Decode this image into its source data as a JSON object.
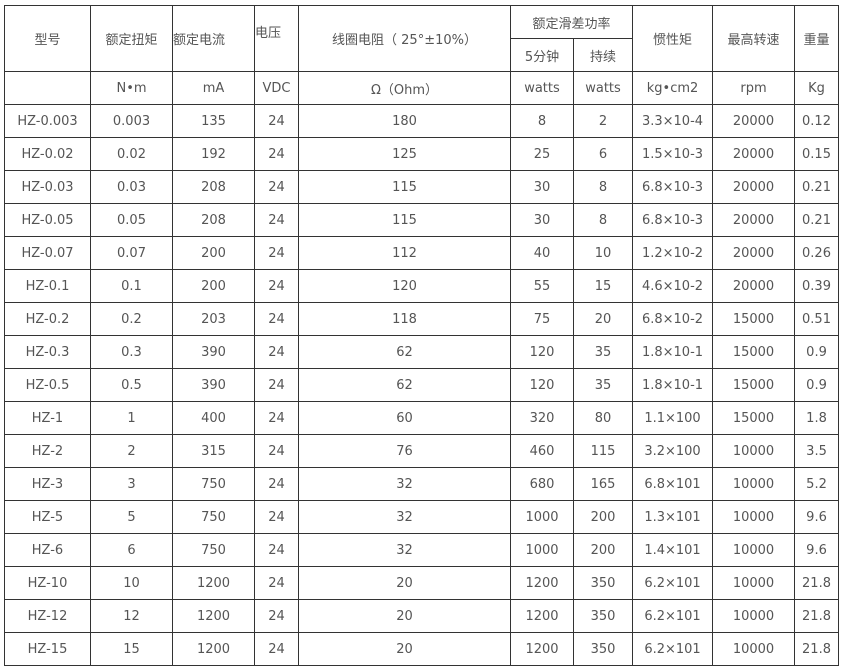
{
  "headers": {
    "model": "型号",
    "torque": "额定扭矩",
    "current": "额定电流",
    "voltage": "电压",
    "resistance": "线圈电阻（ 25°±10%）",
    "slip_power": "额定滑差功率",
    "slip_5min": "5分钟",
    "slip_cont": "持续",
    "inertia": "惯性矩",
    "max_speed": "最高转速",
    "weight": "重量"
  },
  "units": [
    "N•m",
    "mA",
    "VDC",
    "Ω（Ohm）",
    "watts",
    "watts",
    "kg•cm2",
    "rpm",
    "Kg"
  ],
  "rows": [
    [
      "HZ-0.003",
      "0.003",
      "135",
      "24",
      "180",
      "8",
      "2",
      "3.3×10-4",
      "20000",
      "0.12"
    ],
    [
      "HZ-0.02",
      "0.02",
      "192",
      "24",
      "125",
      "25",
      "6",
      "1.5×10-3",
      "20000",
      "0.15"
    ],
    [
      "HZ-0.03",
      "0.03",
      "208",
      "24",
      "115",
      "30",
      "8",
      "6.8×10-3",
      "20000",
      "0.21"
    ],
    [
      "HZ-0.05",
      "0.05",
      "208",
      "24",
      "115",
      "30",
      "8",
      "6.8×10-3",
      "20000",
      "0.21"
    ],
    [
      "HZ-0.07",
      "0.07",
      "200",
      "24",
      "112",
      "40",
      "10",
      "1.2×10-2",
      "20000",
      "0.26"
    ],
    [
      "HZ-0.1",
      "0.1",
      "200",
      "24",
      "120",
      "55",
      "15",
      "4.6×10-2",
      "20000",
      "0.39"
    ],
    [
      "HZ-0.2",
      "0.2",
      "203",
      "24",
      "118",
      "75",
      "20",
      "6.8×10-2",
      "15000",
      "0.51"
    ],
    [
      "HZ-0.3",
      "0.3",
      "390",
      "24",
      "62",
      "120",
      "35",
      "1.8×10-1",
      "15000",
      "0.9"
    ],
    [
      "HZ-0.5",
      "0.5",
      "390",
      "24",
      "62",
      "120",
      "35",
      "1.8×10-1",
      "15000",
      "0.9"
    ],
    [
      "HZ-1",
      "1",
      "400",
      "24",
      "60",
      "320",
      "80",
      "1.1×100",
      "15000",
      "1.8"
    ],
    [
      "HZ-2",
      "2",
      "315",
      "24",
      "76",
      "460",
      "115",
      "3.2×100",
      "10000",
      "3.5"
    ],
    [
      "HZ-3",
      "3",
      "750",
      "24",
      "32",
      "680",
      "165",
      "6.8×101",
      "10000",
      "5.2"
    ],
    [
      "HZ-5",
      "5",
      "750",
      "24",
      "32",
      "1000",
      "200",
      "1.3×101",
      "10000",
      "9.6"
    ],
    [
      "HZ-6",
      "6",
      "750",
      "24",
      "32",
      "1000",
      "200",
      "1.4×101",
      "10000",
      "9.6"
    ],
    [
      "HZ-10",
      "10",
      "1200",
      "24",
      "20",
      "1200",
      "350",
      "6.2×101",
      "10000",
      "21.8"
    ],
    [
      "HZ-12",
      "12",
      "1200",
      "24",
      "20",
      "1200",
      "350",
      "6.2×101",
      "10000",
      "21.8"
    ],
    [
      "HZ-15",
      "15",
      "1200",
      "24",
      "20",
      "1200",
      "350",
      "6.2×101",
      "10000",
      "21.8"
    ]
  ]
}
